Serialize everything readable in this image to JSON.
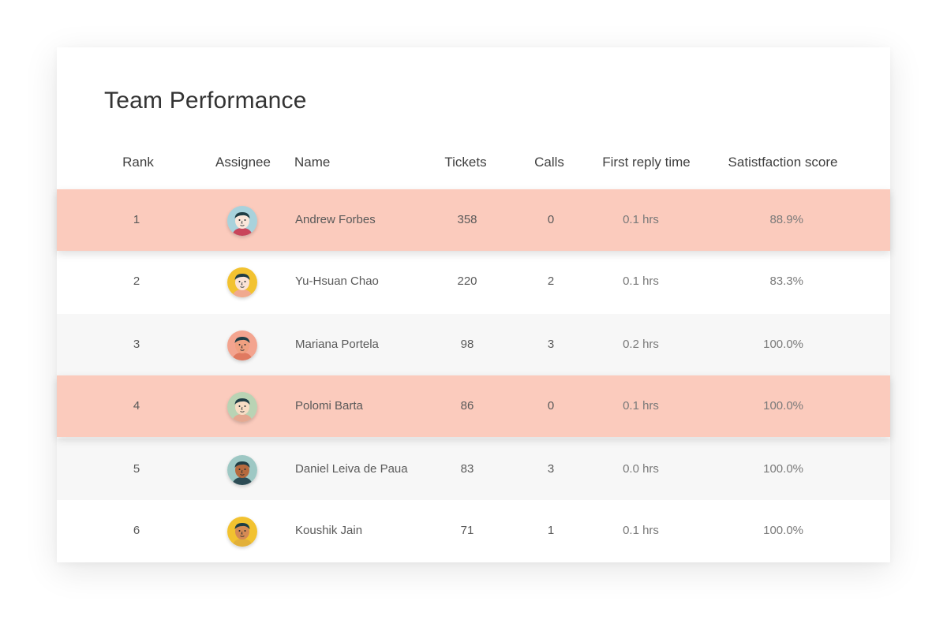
{
  "title": "Team Performance",
  "columns": {
    "rank": "Rank",
    "assignee": "Assignee",
    "name": "Name",
    "tickets": "Tickets",
    "calls": "Calls",
    "reply": "First reply time",
    "score": "Satistfaction score"
  },
  "colors": {
    "highlight": "#fbcbbd",
    "stripe": "#f7f7f7"
  },
  "rows": [
    {
      "rank": "1",
      "name": "Andrew Forbes",
      "tickets": "358",
      "calls": "0",
      "reply": "0.1 hrs",
      "score": "88.9%",
      "highlighted": true,
      "avatar": {
        "icon": "avatar-face-icon",
        "bg": "#a8d2dc",
        "skin": "#fbe6da",
        "hair": "#1f3d45",
        "shirt": "#c9455a"
      }
    },
    {
      "rank": "2",
      "name": "Yu-Hsuan Chao",
      "tickets": "220",
      "calls": "2",
      "reply": "0.1 hrs",
      "score": "83.3%",
      "highlighted": false,
      "avatar": {
        "icon": "avatar-face-icon",
        "bg": "#f2c230",
        "skin": "#fbe3d6",
        "hair": "#1f3d45",
        "shirt": "#f0a98f"
      }
    },
    {
      "rank": "3",
      "name": "Mariana Portela",
      "tickets": "98",
      "calls": "3",
      "reply": "0.2 hrs",
      "score": "100.0%",
      "highlighted": false,
      "avatar": {
        "icon": "avatar-face-icon",
        "bg": "#f3a48f",
        "skin": "#f0a080",
        "hair": "#1f3d45",
        "shirt": "#e07a60"
      }
    },
    {
      "rank": "4",
      "name": "Polomi Barta",
      "tickets": "86",
      "calls": "0",
      "reply": "0.1 hrs",
      "score": "100.0%",
      "highlighted": true,
      "avatar": {
        "icon": "avatar-face-icon",
        "bg": "#b9d3b4",
        "skin": "#f7dcc4",
        "hair": "#1f3d45",
        "shirt": "#e5a891"
      }
    },
    {
      "rank": "5",
      "name": "Daniel Leiva de Paua",
      "tickets": "83",
      "calls": "3",
      "reply": "0.0 hrs",
      "score": "100.0%",
      "highlighted": false,
      "avatar": {
        "icon": "avatar-face-icon",
        "bg": "#9ec8c4",
        "skin": "#b66a3e",
        "hair": "#1f3d45",
        "shirt": "#2d4c55"
      }
    },
    {
      "rank": "6",
      "name": "Koushik Jain",
      "tickets": "71",
      "calls": "1",
      "reply": "0.1 hrs",
      "score": "100.0%",
      "highlighted": false,
      "avatar": {
        "icon": "avatar-face-icon",
        "bg": "#f2c230",
        "skin": "#d58a55",
        "hair": "#1f3d45",
        "shirt": "#e2b03a"
      }
    }
  ]
}
